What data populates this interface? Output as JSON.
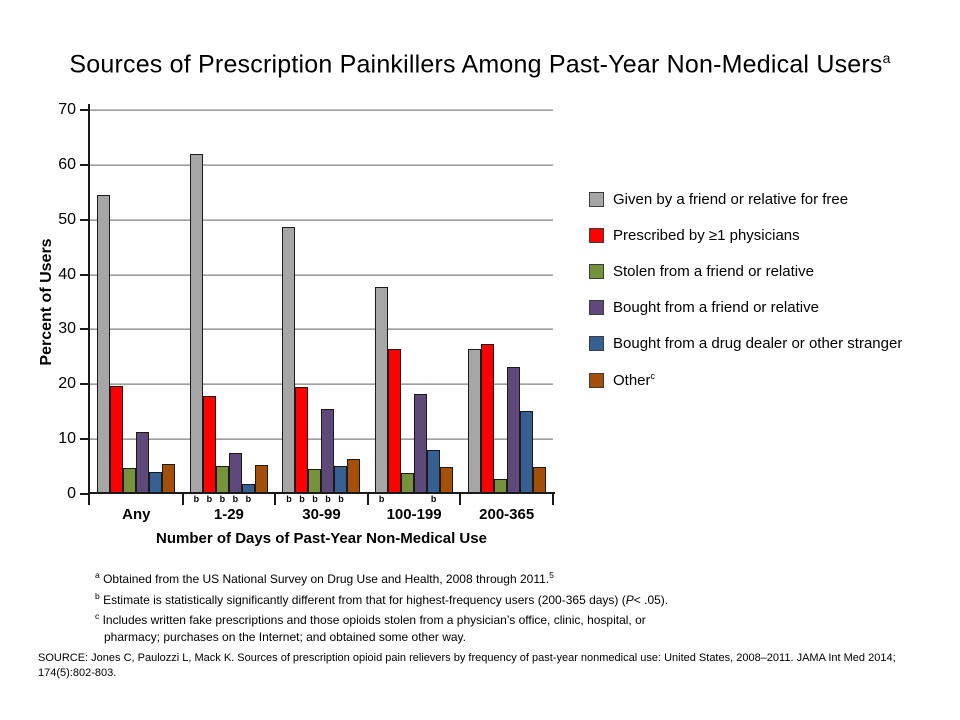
{
  "chart_data": {
    "type": "bar",
    "title": "Sources of Prescription Painkillers Among Past-Year Non-Medical Users",
    "title_sup": "a",
    "categories": [
      "Any",
      "1-29",
      "30-99",
      "100-199",
      "200-365"
    ],
    "series": [
      {
        "key": "given-free",
        "name": "Given by a friend or relative for free",
        "color": "#A6A6A6",
        "values": [
          54.5,
          62.0,
          48.6,
          37.8,
          26.4
        ]
      },
      {
        "key": "prescribed",
        "name": "Prescribed by ≥1 physicians",
        "color": "#FF0000",
        "values": [
          19.7,
          17.8,
          19.5,
          26.5,
          27.3
        ]
      },
      {
        "key": "stolen-friend",
        "name": "Stolen from a friend or relative",
        "color": "#76923C",
        "values": [
          4.7,
          5.2,
          4.5,
          3.9,
          2.8
        ]
      },
      {
        "key": "bought-friend",
        "name": "Bought from a friend or relative",
        "color": "#5F497A",
        "values": [
          11.4,
          7.5,
          15.5,
          18.3,
          23.2
        ]
      },
      {
        "key": "bought-dealer",
        "name": "Bought from a drug dealer or other stranger",
        "color": "#376092",
        "values": [
          4.0,
          1.9,
          5.1,
          8.0,
          15.2
        ]
      },
      {
        "key": "other",
        "name": "Other",
        "name_sup": "c",
        "color": "#A5500A",
        "values": [
          5.4,
          5.3,
          6.3,
          5.0,
          4.9
        ]
      }
    ],
    "ylabel": "Percent of Users",
    "xlabel": "Number of Days of Past-Year Non-Medical Use",
    "ylim": [
      0,
      70
    ],
    "ytick_step": 10,
    "grid": true,
    "legend_position": "right",
    "sig_marker_label": "b",
    "sig_markers": [
      [],
      [
        0,
        1,
        2,
        3,
        4
      ],
      [
        0,
        1,
        2,
        3,
        4
      ],
      [
        0,
        4
      ],
      []
    ]
  },
  "footnotes": {
    "a": {
      "marker": "a",
      "text": "Obtained from the US National Survey on Drug Use and Health, 2008 through 2011.",
      "sup": "5"
    },
    "b": {
      "marker": "b",
      "before": "Estimate is statistically significantly different from that for highest-frequency users (200-365 days) (",
      "italic": "P",
      "after": "< .05)."
    },
    "c": {
      "marker": "c",
      "line1": "Includes written fake prescriptions and those opioids stolen from a physician’s office, clinic, hospital, or",
      "line2": "pharmacy; purchases on the Internet; and obtained some other way."
    }
  },
  "source": {
    "line1": "SOURCE: Jones C, Paulozzi L, Mack K. Sources of prescription opioid pain relievers by frequency of past-year nonmedical use: United States, 2008–2011. JAMA Int Med 2014;",
    "line2": "174(5):802-803."
  }
}
